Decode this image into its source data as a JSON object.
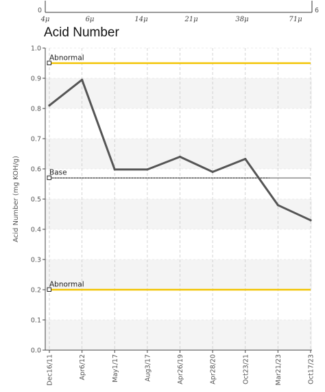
{
  "top_scale": {
    "left_end": "0",
    "right_end": "6",
    "ticks": [
      "4μ",
      "6μ",
      "14μ",
      "21μ",
      "38μ",
      "71μ"
    ]
  },
  "chart_data": {
    "type": "line",
    "title": "Acid Number",
    "ylabel": "Acid Number (mg KOH/g)",
    "xlabel": "",
    "ylim": [
      0.0,
      1.0
    ],
    "y_ticks": [
      "0.0",
      "0.1",
      "0.2",
      "0.3",
      "0.4",
      "0.5",
      "0.6",
      "0.7",
      "0.8",
      "0.9",
      "1.0"
    ],
    "categories": [
      "Dec16/11",
      "Apr6/12",
      "May1/17",
      "Aug3/17",
      "Apr26/19",
      "Apr28/20",
      "Oct23/21",
      "Mar21/23",
      "Oct17/23"
    ],
    "series": [
      {
        "values": [
          0.81,
          0.895,
          0.598,
          0.598,
          0.64,
          0.59,
          0.633,
          0.48,
          0.43
        ],
        "color": "#555555"
      }
    ],
    "reference_lines": [
      {
        "label": "Abnormal",
        "value": 0.95,
        "color": "#f2c400",
        "style": "solid"
      },
      {
        "label": "Base",
        "value": 0.57,
        "color": "#333333",
        "style": "dashed"
      },
      {
        "label": "Abnormal",
        "value": 0.2,
        "color": "#f2c400",
        "style": "solid"
      }
    ],
    "grid": true,
    "band_colors": [
      "#f4f4f4",
      "#ffffff"
    ]
  }
}
